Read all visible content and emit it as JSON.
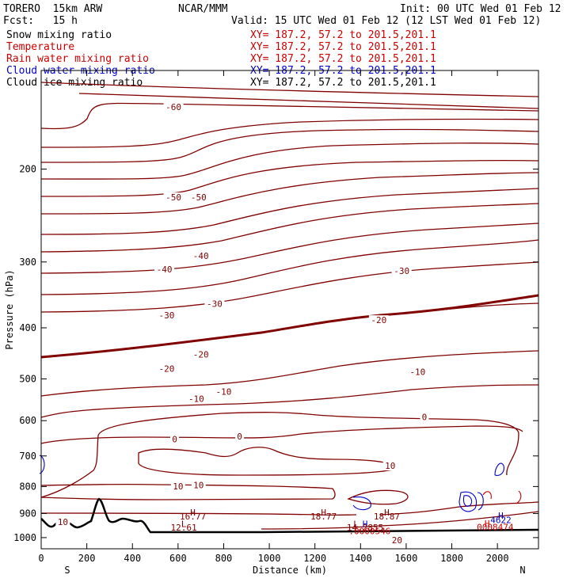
{
  "header": {
    "model": "TORERO  15km ARW",
    "org": "NCAR/MMM",
    "init": "Init: 00 UTC Wed 01 Feb 12",
    "fcst": "Fcst:   15 h",
    "valid": "Valid: 15 UTC Wed 01 Feb 12 (12 LST Wed 01 Feb 12)"
  },
  "legend": [
    {
      "label": "Snow mixing ratio",
      "xy": "XY= 187.2, 57.2 to 201.5,201.1",
      "color": "#000000",
      "xy_color": "#cc0000"
    },
    {
      "label": "Temperature",
      "xy": "XY= 187.2, 57.2 to 201.5,201.1",
      "color": "#cc0000",
      "xy_color": "#cc0000"
    },
    {
      "label": "Rain water mixing ratio",
      "xy": "XY= 187.2, 57.2 to 201.5,201.1",
      "color": "#cc0000",
      "xy_color": "#cc0000"
    },
    {
      "label": "Cloud water mixing ratio",
      "xy": "XY= 187.2, 57.2 to 201.5,201.1",
      "color": "#0000cc",
      "xy_color": "#0000cc"
    },
    {
      "label": "Cloud ice mixing ratio",
      "xy": "XY= 187.2, 57.2 to 201.5,201.1",
      "color": "#000000",
      "xy_color": "#000000"
    }
  ],
  "chart_data": {
    "type": "contour-cross-section",
    "xlabel": "Distance (km)",
    "ylabel": "Pressure (hPa)",
    "x_ticks": [
      0,
      200,
      400,
      600,
      800,
      1000,
      1200,
      1400,
      1600,
      1800,
      2000
    ],
    "y_ticks": [
      200,
      300,
      400,
      500,
      600,
      700,
      800,
      900,
      1000
    ],
    "xlim": [
      0,
      2180
    ],
    "ylim": [
      1050,
      130
    ],
    "endpoint_labels": {
      "left": "S",
      "right": "N"
    },
    "isotherm_labels": [
      {
        "text": "-60",
        "x": 580,
        "p": 153
      },
      {
        "text": "-50",
        "x": 580,
        "p": 227
      },
      {
        "text": "-50",
        "x": 690,
        "p": 227
      },
      {
        "text": "-40",
        "x": 540,
        "p": 311
      },
      {
        "text": "-40",
        "x": 700,
        "p": 293
      },
      {
        "text": "-30",
        "x": 1580,
        "p": 313
      },
      {
        "text": "-30",
        "x": 550,
        "p": 380
      },
      {
        "text": "-30",
        "x": 760,
        "p": 361
      },
      {
        "text": "-20",
        "x": 1480,
        "p": 388
      },
      {
        "text": "-20",
        "x": 700,
        "p": 451
      },
      {
        "text": "-20",
        "x": 550,
        "p": 480
      },
      {
        "text": "-10",
        "x": 1650,
        "p": 486
      },
      {
        "text": "-10",
        "x": 800,
        "p": 530
      },
      {
        "text": "-10",
        "x": 680,
        "p": 547
      },
      {
        "text": "0",
        "x": 1680,
        "p": 592
      },
      {
        "text": "0",
        "x": 870,
        "p": 645
      },
      {
        "text": "0",
        "x": 585,
        "p": 653
      },
      {
        "text": "10",
        "x": 1530,
        "p": 733
      },
      {
        "text": "10",
        "x": 690,
        "p": 798
      },
      {
        "text": "10",
        "x": 600,
        "p": 802
      },
      {
        "text": "10",
        "x": 95,
        "p": 937
      },
      {
        "text": "20",
        "x": 1560,
        "p": 1015
      }
    ],
    "extrema_markers": [
      {
        "text": "H",
        "x": 665,
        "p": 895,
        "color": "#800000"
      },
      {
        "text": "16.77",
        "x": 665,
        "p": 911,
        "color": "#800000"
      },
      {
        "text": "L",
        "x": 625,
        "p": 941,
        "color": "#800000"
      },
      {
        "text": "12.61",
        "x": 625,
        "p": 957,
        "color": "#800000"
      },
      {
        "text": "H",
        "x": 1238,
        "p": 895,
        "color": "#800000"
      },
      {
        "text": "18.77",
        "x": 1238,
        "p": 911,
        "color": "#800000"
      },
      {
        "text": "H",
        "x": 1515,
        "p": 895,
        "color": "#800000"
      },
      {
        "text": "18.87",
        "x": 1515,
        "p": 911,
        "color": "#800000"
      },
      {
        "text": "L",
        "x": 1380,
        "p": 942,
        "color": "#800000"
      },
      {
        "text": "H",
        "x": 1420,
        "p": 942,
        "color": "#0000cc"
      },
      {
        "text": "14.2855",
        "x": 1420,
        "p": 957,
        "color": "#800000"
      },
      {
        "text": ".0000546",
        "x": 1440,
        "p": 972,
        "color": "#cc0000"
      },
      {
        "text": "H",
        "x": 2015,
        "p": 908,
        "color": "#0000cc"
      },
      {
        "text": "4622",
        "x": 2015,
        "p": 926,
        "color": "#0000cc"
      },
      {
        "text": "H",
        "x": 1955,
        "p": 940,
        "color": "#cc0000"
      },
      {
        "text": "0008474",
        "x": 1990,
        "p": 954,
        "color": "#cc0000"
      }
    ]
  }
}
